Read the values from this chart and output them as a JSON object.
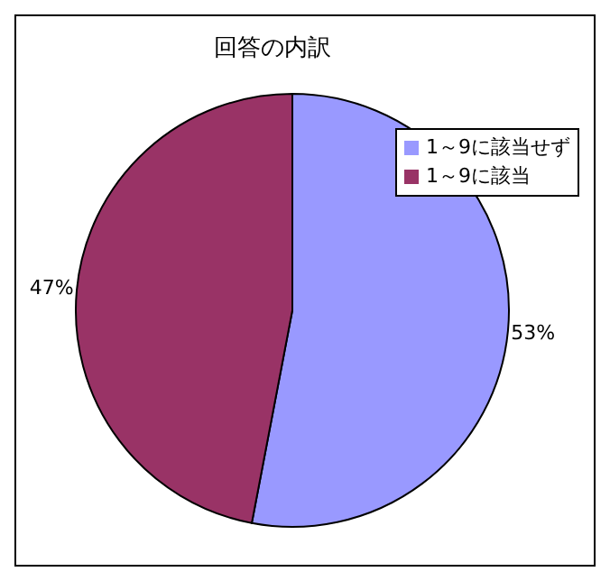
{
  "chart_data": {
    "type": "pie",
    "title": "回答の内訳",
    "categories": [
      "1～9に該当せず",
      "1～9に該当"
    ],
    "values": [
      53,
      47
    ],
    "value_labels": [
      "53%",
      "47%"
    ],
    "colors": [
      "#9999ff",
      "#993366"
    ],
    "legend": "top right"
  }
}
